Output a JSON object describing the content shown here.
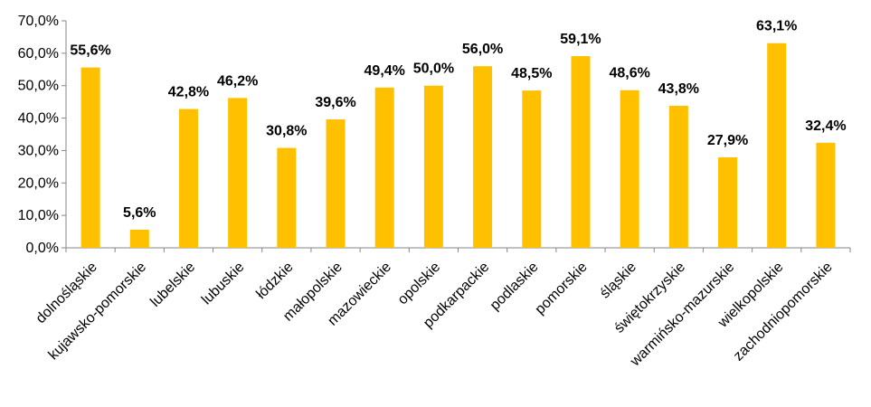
{
  "chart_data": {
    "type": "bar",
    "title": "",
    "xlabel": "",
    "ylabel": "",
    "ylim": [
      0,
      70
    ],
    "y_ticks": [
      "0,0%",
      "10,0%",
      "20,0%",
      "30,0%",
      "40,0%",
      "50,0%",
      "60,0%",
      "70,0%"
    ],
    "grid": false,
    "legend": "none",
    "bar_color": "#FFC000",
    "categories": [
      "dolnośląskie",
      "kujawsko-pomorskie",
      "lubelskie",
      "lubuskie",
      "łódzkie",
      "małopolskie",
      "mazowieckie",
      "opolskie",
      "podkarpackie",
      "podlaskie",
      "pomorskie",
      "śląskie",
      "świętokrzyskie",
      "warmińsko-mazurskie",
      "wielkopolskie",
      "zachodniopomorskie"
    ],
    "values": [
      55.6,
      5.6,
      42.8,
      46.2,
      30.8,
      39.6,
      49.4,
      50.0,
      56.0,
      48.5,
      59.1,
      48.6,
      43.8,
      27.9,
      63.1,
      32.4
    ],
    "data_labels": [
      "55,6%",
      "5,6%",
      "42,8%",
      "46,2%",
      "30,8%",
      "39,6%",
      "49,4%",
      "50,0%",
      "56,0%",
      "48,5%",
      "59,1%",
      "48,6%",
      "43,8%",
      "27,9%",
      "63,1%",
      "32,4%"
    ]
  }
}
